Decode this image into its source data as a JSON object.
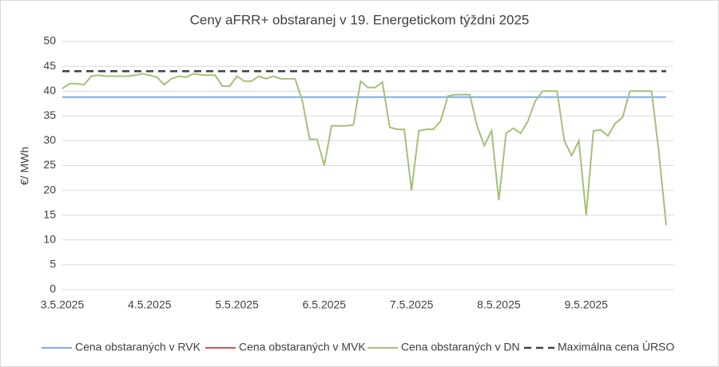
{
  "chart_data": {
    "type": "line",
    "title": "Ceny aFRR+ obstaranej v 19. Energetickom týždni 2025",
    "y_label": "€/ MWh",
    "categories": [
      "3.5.2025",
      null,
      null,
      null,
      null,
      null,
      null,
      null,
      null,
      null,
      null,
      null,
      "4.5.2025",
      null,
      null,
      null,
      null,
      null,
      null,
      null,
      null,
      null,
      null,
      null,
      "5.5.2025",
      null,
      null,
      null,
      null,
      null,
      null,
      null,
      null,
      null,
      null,
      null,
      "6.5.2025",
      null,
      null,
      null,
      null,
      null,
      null,
      null,
      null,
      null,
      null,
      null,
      "7.5.2025",
      null,
      null,
      null,
      null,
      null,
      null,
      null,
      null,
      null,
      null,
      null,
      "8.5.2025",
      null,
      null,
      null,
      null,
      null,
      null,
      null,
      null,
      null,
      null,
      null,
      "9.5.2025",
      null,
      null,
      null,
      null,
      null,
      null,
      null,
      null,
      null,
      null,
      null
    ],
    "series": [
      {
        "name": "Cena obstaraných v RVK",
        "color": "#7eaee0",
        "dashed": false,
        "values": [
          38.8,
          38.8,
          38.8,
          38.8,
          38.8,
          38.8,
          38.8,
          38.8,
          38.8,
          38.8,
          38.8,
          38.8,
          38.8,
          38.8,
          38.8,
          38.8,
          38.8,
          38.8,
          38.8,
          38.8,
          38.8,
          38.8,
          38.8,
          38.8,
          38.8,
          38.8,
          38.8,
          38.8,
          38.8,
          38.8,
          38.8,
          38.8,
          38.8,
          38.8,
          38.8,
          38.8,
          38.8,
          38.8,
          38.8,
          38.8,
          38.8,
          38.8,
          38.8,
          38.8,
          38.8,
          38.8,
          38.8,
          38.8,
          38.8,
          38.8,
          38.8,
          38.8,
          38.8,
          38.8,
          38.8,
          38.8,
          38.8,
          38.8,
          38.8,
          38.8,
          38.8,
          38.8,
          38.8,
          38.8,
          38.8,
          38.8,
          38.8,
          38.8,
          38.8,
          38.8,
          38.8,
          38.8,
          38.8,
          38.8,
          38.8,
          38.8,
          38.8,
          38.8,
          38.8,
          38.8,
          38.8,
          38.8,
          38.8,
          38.8
        ]
      },
      {
        "name": "Cena obstaraných v MVK",
        "color": "#d9534f",
        "dashed": false,
        "values": [
          null,
          null,
          null,
          null,
          null,
          null,
          null,
          null,
          null,
          null,
          null,
          null,
          null,
          null,
          null,
          null,
          null,
          null,
          null,
          null,
          null,
          null,
          null,
          null,
          null,
          null,
          null,
          null,
          null,
          null,
          null,
          null,
          null,
          null,
          null,
          null,
          null,
          null,
          null,
          null,
          null,
          null,
          null,
          null,
          null,
          null,
          null,
          null,
          null,
          null,
          null,
          null,
          null,
          null,
          null,
          null,
          null,
          null,
          null,
          null,
          null,
          null,
          null,
          null,
          null,
          null,
          null,
          null,
          null,
          null,
          null,
          null,
          null,
          null,
          null,
          null,
          null,
          null,
          null,
          null,
          null,
          null,
          null,
          null
        ]
      },
      {
        "name": "Cena obstaraných v DN",
        "color": "#a5c07a",
        "dashed": false,
        "values": [
          40.5,
          41.5,
          41.5,
          41.3,
          43,
          43.2,
          43,
          43,
          43,
          43,
          43.2,
          43.5,
          43.2,
          42.8,
          41.3,
          42.5,
          43,
          42.8,
          43.5,
          43.3,
          43.2,
          43.2,
          41,
          41,
          43,
          42,
          42,
          43,
          42.5,
          43,
          42.5,
          42.5,
          42.5,
          38,
          30.3,
          30.3,
          25,
          33,
          33,
          33,
          33.2,
          42,
          40.7,
          40.7,
          41.8,
          32.7,
          32.3,
          32.3,
          20,
          32,
          32.3,
          32.3,
          34,
          39,
          39.3,
          39.3,
          39.3,
          33,
          29,
          32,
          18,
          31.5,
          32.5,
          31.5,
          34,
          38,
          40,
          40,
          40,
          30,
          27,
          30,
          15,
          32,
          32.2,
          31,
          33.5,
          34.7,
          40,
          40,
          40,
          40,
          27.5,
          13
        ]
      },
      {
        "name": "Maximálna cena ÚRSO",
        "color": "#404040",
        "dashed": true,
        "values": [
          44,
          44,
          44,
          44,
          44,
          44,
          44,
          44,
          44,
          44,
          44,
          44,
          44,
          44,
          44,
          44,
          44,
          44,
          44,
          44,
          44,
          44,
          44,
          44,
          44,
          44,
          44,
          44,
          44,
          44,
          44,
          44,
          44,
          44,
          44,
          44,
          44,
          44,
          44,
          44,
          44,
          44,
          44,
          44,
          44,
          44,
          44,
          44,
          44,
          44,
          44,
          44,
          44,
          44,
          44,
          44,
          44,
          44,
          44,
          44,
          44,
          44,
          44,
          44,
          44,
          44,
          44,
          44,
          44,
          44,
          44,
          44,
          44,
          44,
          44,
          44,
          44,
          44,
          44,
          44,
          44,
          44,
          44,
          44
        ]
      }
    ],
    "ylim": [
      0,
      50
    ],
    "yticks": [
      0,
      5,
      10,
      15,
      20,
      25,
      30,
      35,
      40,
      45,
      50
    ],
    "grid": true,
    "legend": "bottom"
  }
}
